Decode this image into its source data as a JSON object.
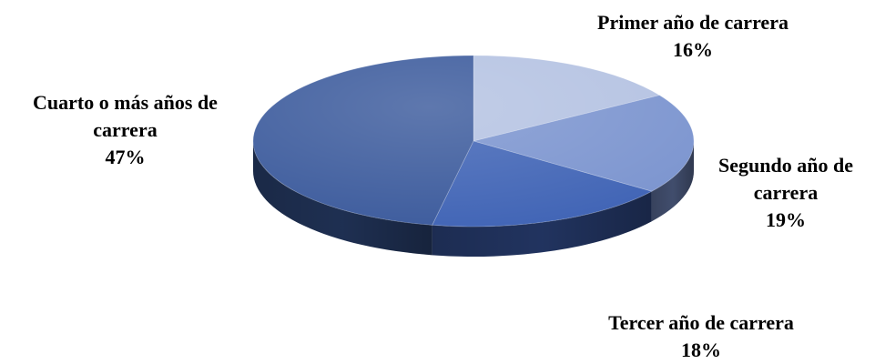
{
  "chart_data": {
    "type": "pie",
    "style": "3d",
    "title": "",
    "legend": "none",
    "colors": [
      "#b4c2e2",
      "#7b94cf",
      "#3f63b5",
      "#3b5a9c"
    ],
    "slices": [
      {
        "label_lines": [
          "Primer año de carrera"
        ],
        "value": 16,
        "value_label": "16%"
      },
      {
        "label_lines": [
          "Segundo año de",
          "carrera"
        ],
        "value": 19,
        "value_label": "19%"
      },
      {
        "label_lines": [
          "Tercer año de carrera"
        ],
        "value": 18,
        "value_label": "18%"
      },
      {
        "label_lines": [
          "Cuarto o más años de",
          "carrera"
        ],
        "value": 47,
        "value_label": "47%"
      }
    ]
  }
}
